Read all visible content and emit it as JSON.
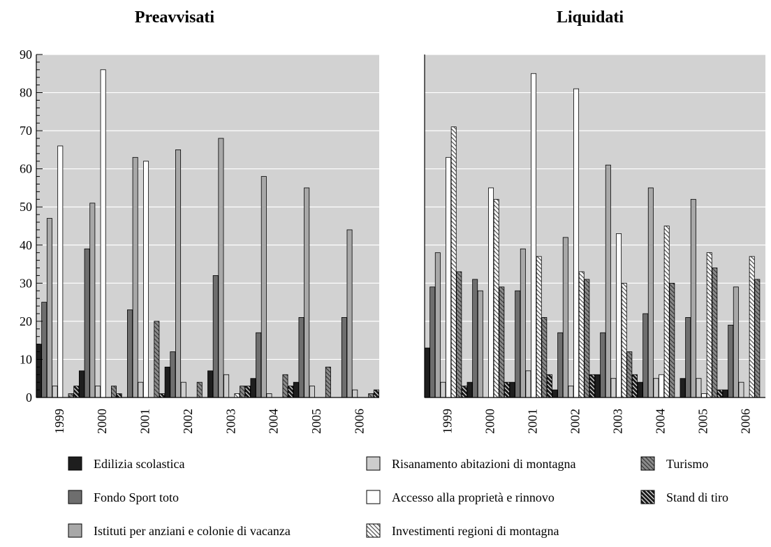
{
  "chart_data": [
    {
      "type": "bar",
      "title": "Preavvisati",
      "categories": [
        "1999",
        "2000",
        "2001",
        "2002",
        "2003",
        "2004",
        "2005",
        "2006"
      ],
      "ylim": [
        0,
        90
      ],
      "yticks": [
        0,
        10,
        20,
        30,
        40,
        50,
        60,
        70,
        80,
        90
      ],
      "grid": true,
      "series": [
        {
          "name": "Edilizia scolastica",
          "values": [
            14,
            7,
            0,
            8,
            7,
            5,
            4,
            0
          ]
        },
        {
          "name": "Fondo Sport toto",
          "values": [
            25,
            39,
            23,
            12,
            32,
            17,
            21,
            21
          ]
        },
        {
          "name": "Istituti per anziani e colonie di vacanza",
          "values": [
            47,
            51,
            63,
            65,
            68,
            58,
            55,
            44
          ]
        },
        {
          "name": "Risanamento abitazioni di montagna",
          "values": [
            3,
            3,
            4,
            4,
            6,
            1,
            3,
            2
          ]
        },
        {
          "name": "Accesso alla proprietà e rinnovo",
          "values": [
            66,
            86,
            62,
            0,
            0,
            0,
            0,
            0
          ]
        },
        {
          "name": "Investimenti regioni di montagna",
          "values": [
            0,
            0,
            0,
            0,
            1,
            0,
            0,
            0
          ]
        },
        {
          "name": "Turismo",
          "values": [
            1,
            3,
            20,
            4,
            3,
            6,
            8,
            1
          ]
        },
        {
          "name": "Stand di tiro",
          "values": [
            3,
            1,
            1,
            0,
            3,
            3,
            0,
            2
          ]
        }
      ]
    },
    {
      "type": "bar",
      "title": "Liquidati",
      "categories": [
        "1999",
        "2000",
        "2001",
        "2002",
        "2003",
        "2004",
        "2005",
        "2006"
      ],
      "ylim": [
        0,
        90
      ],
      "grid": true,
      "series": [
        {
          "name": "Edilizia scolastica",
          "values": [
            13,
            4,
            4,
            2,
            6,
            4,
            5,
            2
          ]
        },
        {
          "name": "Fondo Sport toto",
          "values": [
            29,
            31,
            28,
            17,
            17,
            22,
            21,
            19
          ]
        },
        {
          "name": "Istituti per anziani e colonie di vacanza",
          "values": [
            38,
            28,
            39,
            42,
            61,
            55,
            52,
            29
          ]
        },
        {
          "name": "Risanamento abitazioni di montagna",
          "values": [
            4,
            0,
            7,
            3,
            5,
            5,
            5,
            4
          ]
        },
        {
          "name": "Accesso alla proprietà e rinnovo",
          "values": [
            63,
            55,
            85,
            81,
            43,
            6,
            1,
            0
          ]
        },
        {
          "name": "Investimenti regioni di montagna",
          "values": [
            71,
            52,
            37,
            33,
            30,
            45,
            38,
            37
          ]
        },
        {
          "name": "Turismo",
          "values": [
            33,
            29,
            21,
            31,
            12,
            30,
            34,
            31
          ]
        },
        {
          "name": "Stand di tiro",
          "values": [
            3,
            4,
            6,
            6,
            6,
            0,
            2,
            0
          ]
        }
      ]
    }
  ],
  "legend": [
    {
      "label": "Edilizia scolastica",
      "fill": "#1e1e1e",
      "pattern": "solid"
    },
    {
      "label": "Fondo Sport toto",
      "fill": "#6e6e6e",
      "pattern": "solid"
    },
    {
      "label": "Istituti per anziani e colonie di vacanza",
      "fill": "#a8a8a8",
      "pattern": "solid"
    },
    {
      "label": "Risanamento abitazioni di montagna",
      "fill": "#cdcdcd",
      "pattern": "solid"
    },
    {
      "label": "Accesso alla proprietà e rinnovo",
      "fill": "#ffffff",
      "pattern": "solid"
    },
    {
      "label": "Investimenti regioni di montagna",
      "fill": "#ffffff",
      "pattern": "hatch-light"
    },
    {
      "label": "Turismo",
      "fill": "#8c8c8c",
      "pattern": "hatch-dark"
    },
    {
      "label": "Stand di tiro",
      "fill": "#1a1a1a",
      "pattern": "hatch-white"
    }
  ],
  "colors": {
    "plot_background": "#d2d2d2",
    "gridline": "#ffffff",
    "axis": "#000000"
  }
}
